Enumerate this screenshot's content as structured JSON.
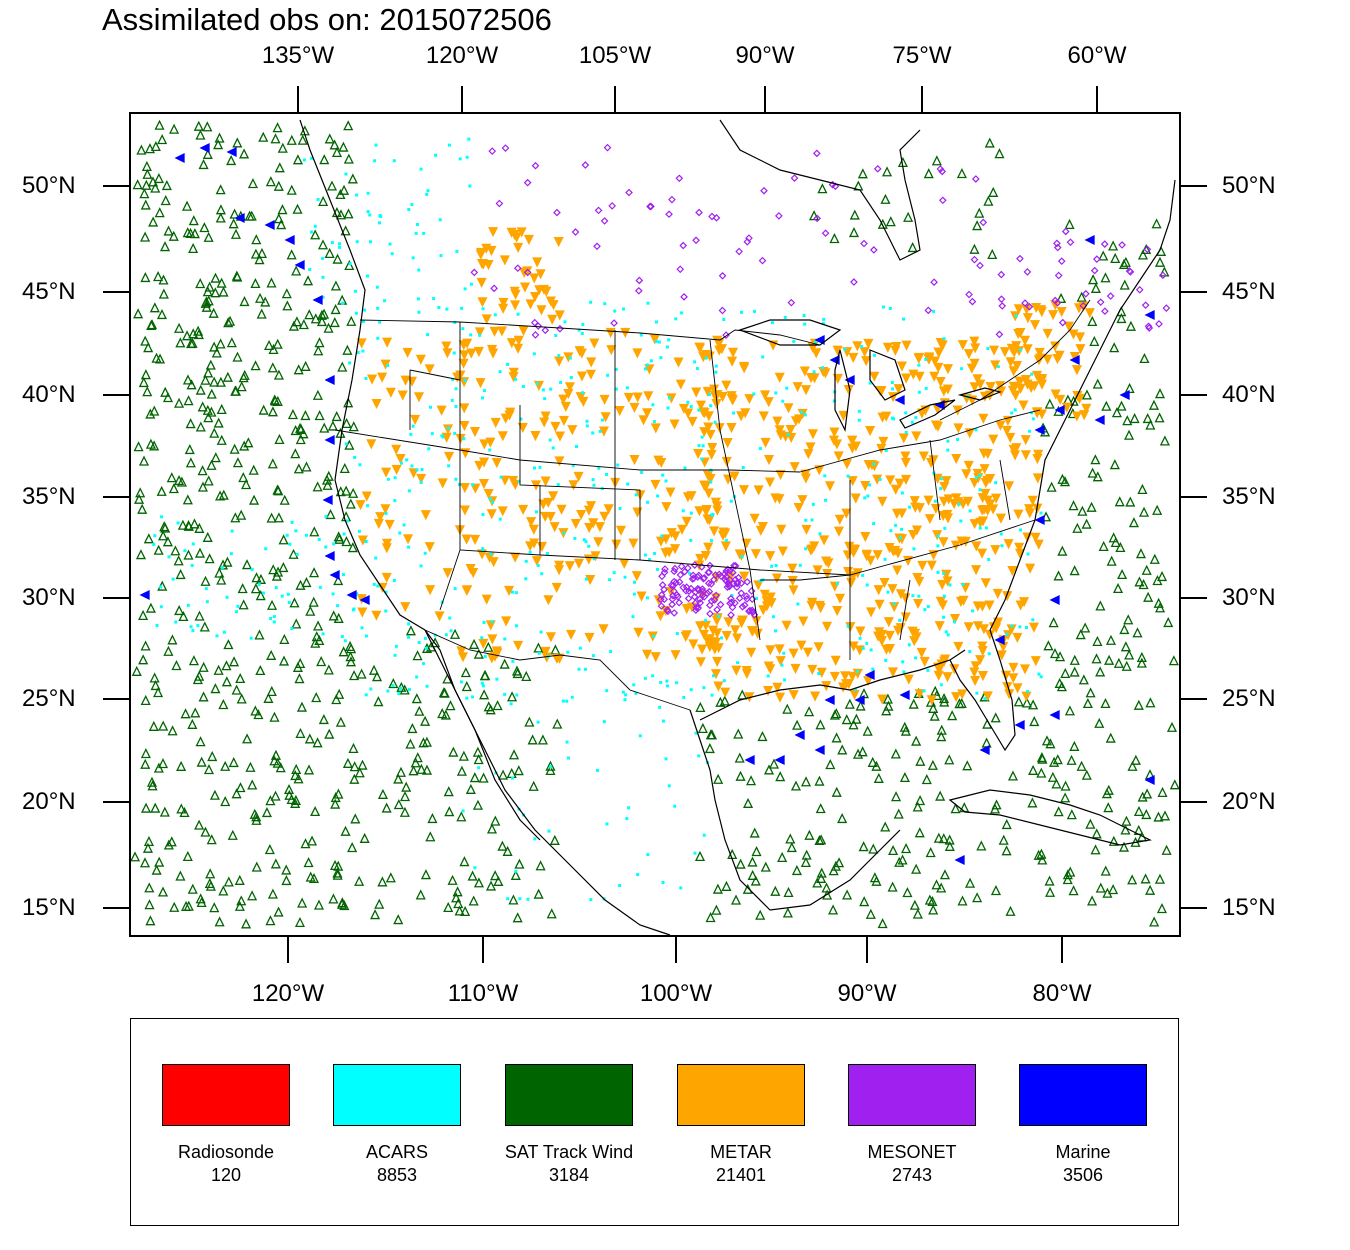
{
  "title": "Assimilated obs on: 2015072506",
  "axes": {
    "top_lon_labels": [
      "135°W",
      "120°W",
      "105°W",
      "90°W",
      "75°W",
      "60°W"
    ],
    "bottom_lon_labels": [
      "120°W",
      "110°W",
      "100°W",
      "90°W",
      "80°W"
    ],
    "lat_labels": [
      "50°N",
      "45°N",
      "40°N",
      "35°N",
      "30°N",
      "25°N",
      "20°N",
      "15°N"
    ]
  },
  "legend": [
    {
      "name": "Radiosonde",
      "count": "120",
      "color": "#ff0000",
      "symbol": "square"
    },
    {
      "name": "ACARS",
      "count": "8853",
      "color": "#00ffff",
      "symbol": "square"
    },
    {
      "name": "SAT Track Wind",
      "count": "3184",
      "color": "#006400",
      "symbol": "triangle-up"
    },
    {
      "name": "METAR",
      "count": "21401",
      "color": "#ffa500",
      "symbol": "triangle-down"
    },
    {
      "name": "MESONET",
      "count": "2743",
      "color": "#a020f0",
      "symbol": "diamond"
    },
    {
      "name": "Marine",
      "count": "3506",
      "color": "#0000ff",
      "symbol": "triangle-left"
    }
  ]
}
